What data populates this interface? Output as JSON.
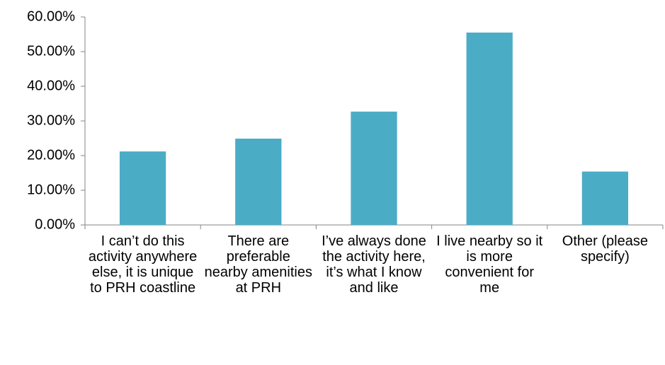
{
  "chart_data": {
    "type": "bar",
    "categories": [
      "I can’t do this activity anywhere else, it is unique to PRH coastline",
      "There are preferable nearby amenities at PRH",
      "I’ve always done the activity here, it’s what I know and like",
      "I live nearby so it is more convenient for me",
      "Other (please specify)"
    ],
    "values": [
      21.2,
      24.9,
      32.7,
      55.5,
      15.4
    ],
    "color": "#4bacc6",
    "ylim": [
      0,
      60
    ],
    "yticks": [
      {
        "value": 0,
        "label": "0.00%"
      },
      {
        "value": 10,
        "label": "10.00%"
      },
      {
        "value": 20,
        "label": "20.00%"
      },
      {
        "value": 30,
        "label": "30.00%"
      },
      {
        "value": 40,
        "label": "40.00%"
      },
      {
        "value": 50,
        "label": "50.00%"
      },
      {
        "value": 60,
        "label": "60.00%"
      }
    ],
    "grid": false
  }
}
